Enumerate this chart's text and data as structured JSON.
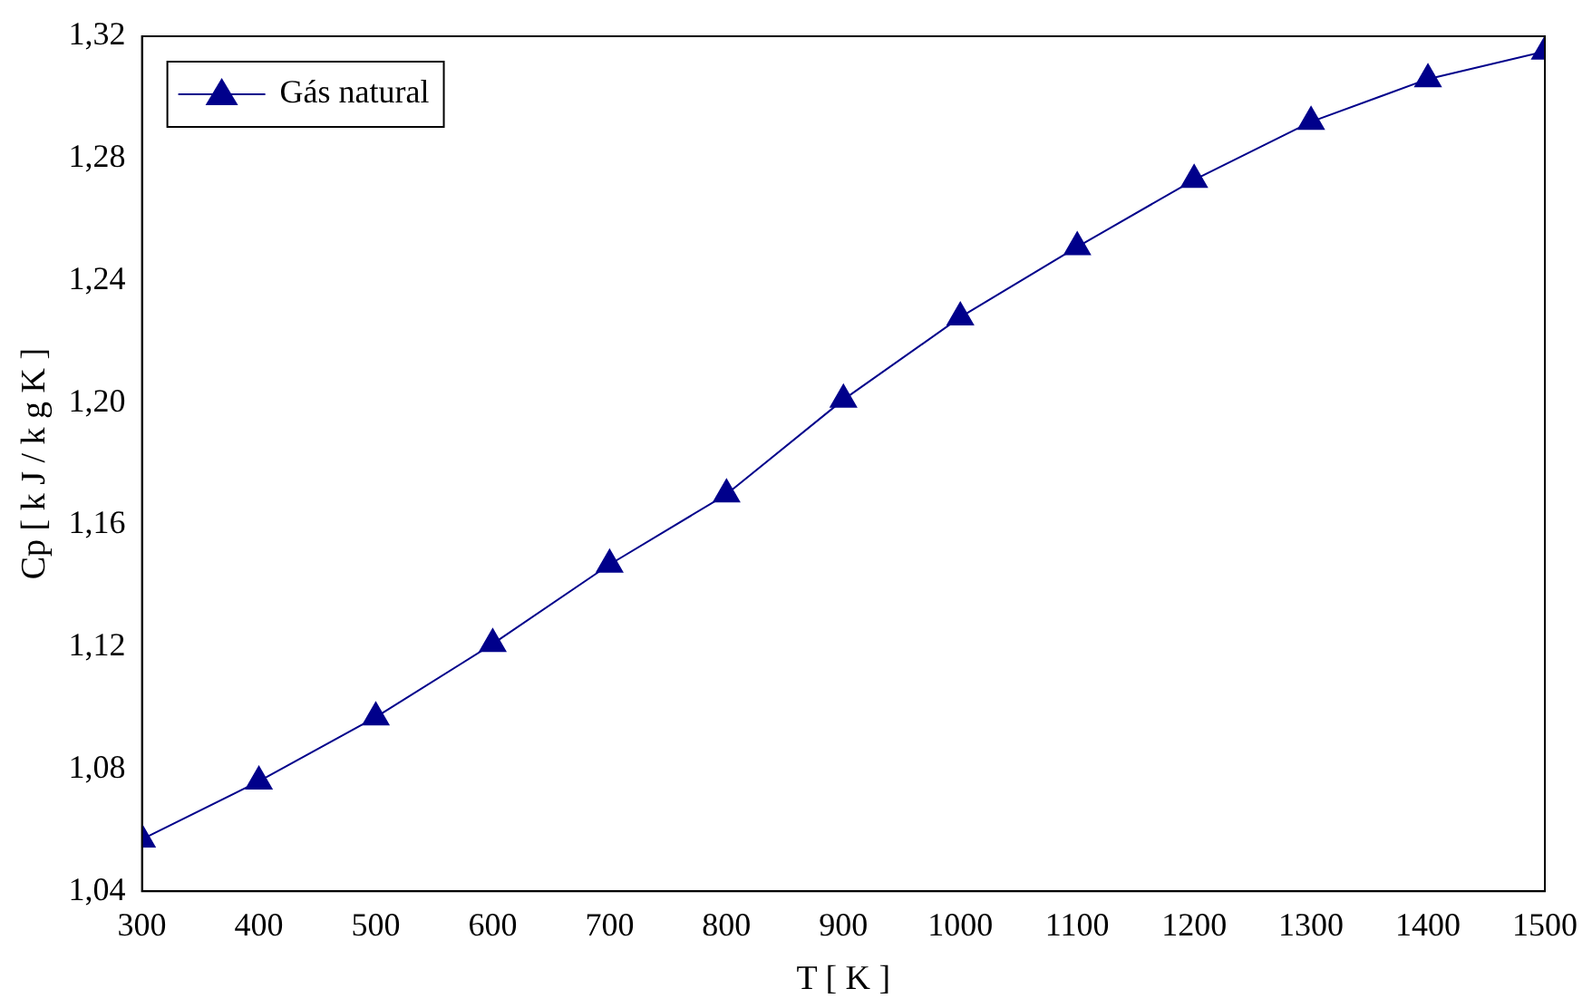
{
  "chart_data": {
    "type": "line",
    "xlabel": "T [ K ]",
    "ylabel": "Cp [ k J / k g K ]",
    "x": [
      300,
      400,
      500,
      600,
      700,
      800,
      900,
      1000,
      1100,
      1200,
      1300,
      1400,
      1500
    ],
    "series": [
      {
        "name": "Gás natural",
        "color": "#00008b",
        "values": [
          1.057,
          1.076,
          1.097,
          1.121,
          1.147,
          1.17,
          1.201,
          1.228,
          1.251,
          1.273,
          1.292,
          1.306,
          1.315
        ]
      }
    ],
    "xlim": [
      300,
      1500
    ],
    "xticks": [
      300,
      400,
      500,
      600,
      700,
      800,
      900,
      1000,
      1100,
      1200,
      1300,
      1400,
      1500
    ],
    "ylim": [
      1.04,
      1.32
    ],
    "yticks": [
      {
        "value": 1.04,
        "label": "1,04"
      },
      {
        "value": 1.08,
        "label": "1,08"
      },
      {
        "value": 1.12,
        "label": "1,12"
      },
      {
        "value": 1.16,
        "label": "1,16"
      },
      {
        "value": 1.2,
        "label": "1,20"
      },
      {
        "value": 1.24,
        "label": "1,24"
      },
      {
        "value": 1.28,
        "label": "1,28"
      },
      {
        "value": 1.32,
        "label": "1,32"
      }
    ],
    "legend": "top left",
    "marker": "triangle",
    "line_style": "solid",
    "grid": false
  }
}
